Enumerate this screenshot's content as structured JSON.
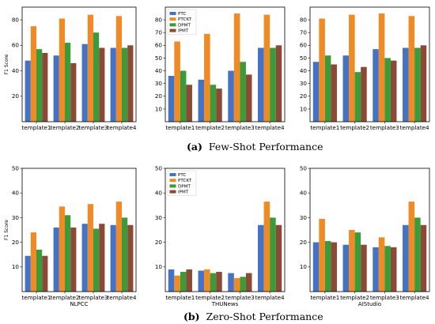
{
  "captions": {
    "a": {
      "label": "(a)",
      "text": "Few-Shot Performance"
    },
    "b": {
      "label": "(b)",
      "text": "Zero-Shot Performance"
    }
  },
  "colors": {
    "PTC": "#4472c4",
    "PTCKT": "#f08a24",
    "DPMT": "#3b9b3b",
    "IPMT": "#8b4a36"
  },
  "chart_data": [
    {
      "type": "bar",
      "row": "few-shot",
      "title": "",
      "xlabel": "",
      "ylabel": "F1 Score",
      "ylim": [
        0,
        90
      ],
      "yticks": [
        20,
        40,
        60,
        80
      ],
      "categories": [
        "template1",
        "template2",
        "template3",
        "template4"
      ],
      "series": [
        {
          "name": "PTC",
          "values": [
            48,
            52,
            61,
            58
          ]
        },
        {
          "name": "PTCKT",
          "values": [
            75,
            81,
            84,
            83
          ]
        },
        {
          "name": "DPMT",
          "values": [
            57,
            62,
            70,
            58
          ]
        },
        {
          "name": "IPMT",
          "values": [
            54,
            46,
            58,
            60
          ]
        }
      ],
      "legend": null
    },
    {
      "type": "bar",
      "row": "few-shot",
      "title": "",
      "xlabel": "",
      "ylabel": "",
      "ylim": [
        0,
        90
      ],
      "yticks": [
        10,
        20,
        30,
        40,
        50,
        60,
        70,
        80
      ],
      "categories": [
        "template1",
        "template2",
        "template3",
        "template4"
      ],
      "series": [
        {
          "name": "PTC",
          "values": [
            36,
            33,
            40,
            58
          ]
        },
        {
          "name": "PTCKT",
          "values": [
            63,
            69,
            85,
            84
          ]
        },
        {
          "name": "DPMT",
          "values": [
            40,
            29,
            47,
            58
          ]
        },
        {
          "name": "IPMT",
          "values": [
            29,
            26,
            37,
            60
          ]
        }
      ],
      "legend": {
        "placement": "top-left",
        "entries": [
          "PTC",
          "PTCKT",
          "DPMT",
          "IPMT"
        ]
      }
    },
    {
      "type": "bar",
      "row": "few-shot",
      "title": "",
      "xlabel": "",
      "ylabel": "",
      "ylim": [
        0,
        90
      ],
      "yticks": [
        10,
        20,
        30,
        40,
        50,
        60,
        70,
        80
      ],
      "categories": [
        "template1",
        "template2",
        "template3",
        "template4"
      ],
      "series": [
        {
          "name": "PTC",
          "values": [
            47,
            52,
            57,
            58
          ]
        },
        {
          "name": "PTCKT",
          "values": [
            81,
            84,
            85,
            83
          ]
        },
        {
          "name": "DPMT",
          "values": [
            52,
            39,
            50,
            58
          ]
        },
        {
          "name": "IPMT",
          "values": [
            45,
            43,
            48,
            60
          ]
        }
      ],
      "legend": null
    },
    {
      "type": "bar",
      "row": "zero-shot",
      "title": "",
      "xlabel": "NLPCC",
      "ylabel": "F1 Score",
      "ylim": [
        0,
        50
      ],
      "yticks": [
        10,
        20,
        30,
        40,
        50
      ],
      "categories": [
        "template1",
        "template2",
        "template3",
        "template4"
      ],
      "series": [
        {
          "name": "PTC",
          "values": [
            14.5,
            26,
            27.5,
            27
          ]
        },
        {
          "name": "PTCKT",
          "values": [
            24,
            34.5,
            35.5,
            36.5
          ]
        },
        {
          "name": "DPMT",
          "values": [
            17,
            31,
            25.5,
            30
          ]
        },
        {
          "name": "IPMT",
          "values": [
            14.5,
            26,
            27.5,
            27
          ]
        }
      ],
      "legend": null
    },
    {
      "type": "bar",
      "row": "zero-shot",
      "title": "",
      "xlabel": "THUNews",
      "ylabel": "",
      "ylim": [
        0,
        50
      ],
      "yticks": [
        10,
        20,
        30,
        40,
        50
      ],
      "categories": [
        "template1",
        "template2",
        "template3",
        "template4"
      ],
      "series": [
        {
          "name": "PTC",
          "values": [
            9,
            8.5,
            7.5,
            27
          ]
        },
        {
          "name": "PTCKT",
          "values": [
            6.5,
            9,
            5.5,
            36.5
          ]
        },
        {
          "name": "DPMT",
          "values": [
            8,
            7.5,
            6,
            30
          ]
        },
        {
          "name": "IPMT",
          "values": [
            9,
            8,
            7.5,
            27
          ]
        }
      ],
      "legend": {
        "placement": "top-left",
        "entries": [
          "PTC",
          "PTCKT",
          "DPMT",
          "IPMT"
        ]
      }
    },
    {
      "type": "bar",
      "row": "zero-shot",
      "title": "",
      "xlabel": "AIStudio",
      "ylabel": "",
      "ylim": [
        0,
        50
      ],
      "yticks": [
        10,
        20,
        30,
        40,
        50
      ],
      "categories": [
        "template1",
        "template2",
        "template3",
        "template4"
      ],
      "series": [
        {
          "name": "PTC",
          "values": [
            20,
            19,
            18,
            27
          ]
        },
        {
          "name": "PTCKT",
          "values": [
            29.5,
            25,
            22,
            36.5
          ]
        },
        {
          "name": "DPMT",
          "values": [
            20.5,
            24,
            18.5,
            30
          ]
        },
        {
          "name": "IPMT",
          "values": [
            20,
            19,
            18,
            27
          ]
        }
      ],
      "legend": null
    }
  ]
}
